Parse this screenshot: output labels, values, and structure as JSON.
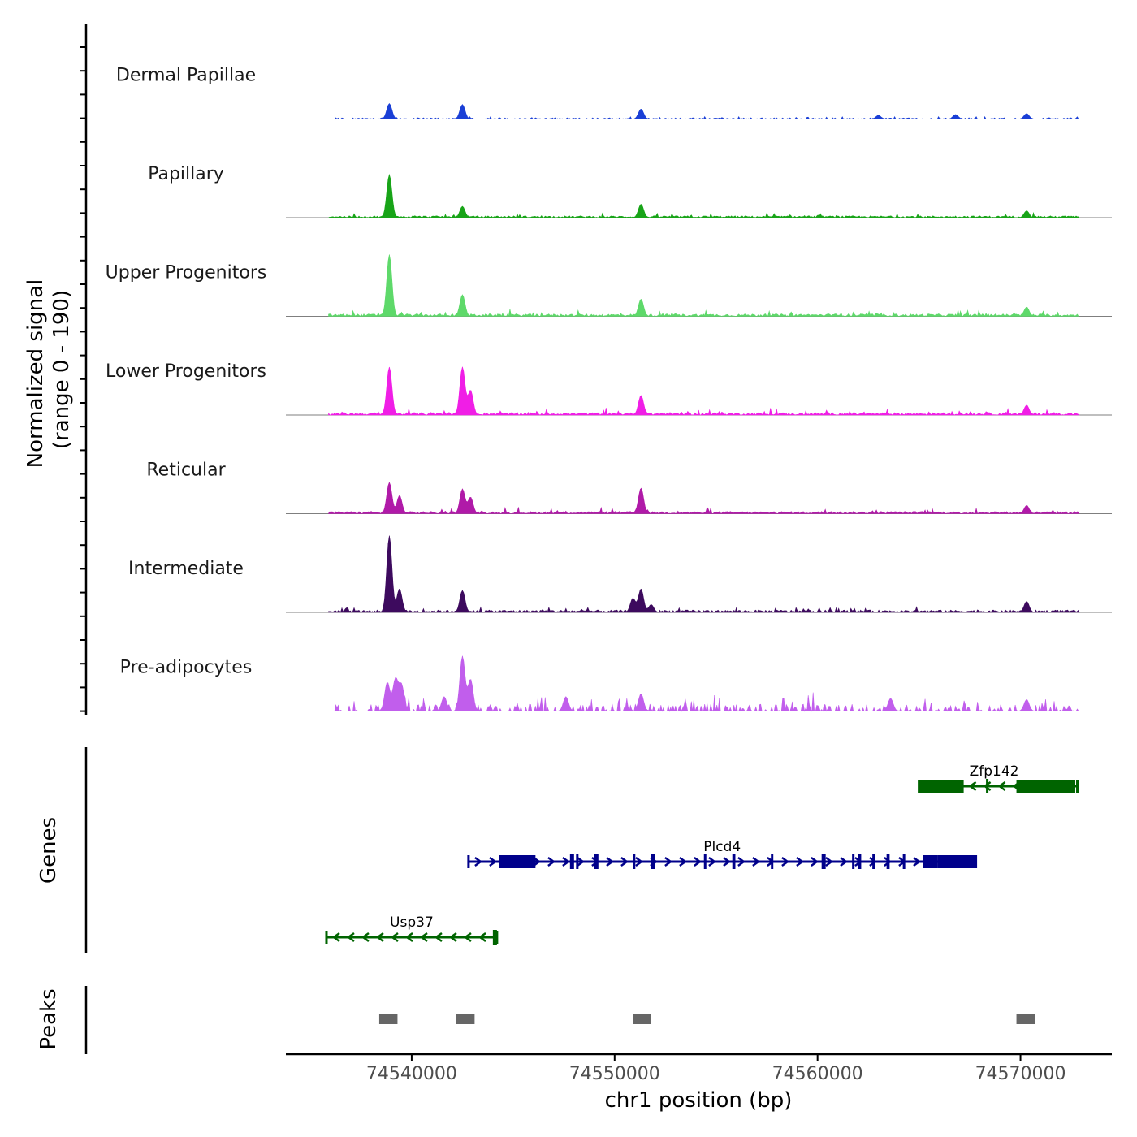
{
  "chart_data": {
    "type": "area",
    "title": "",
    "xlabel": "chr1 position (bp)",
    "ylabel_line1": "Normalized signal",
    "ylabel_line2": "(range 0 - 190)",
    "ylim": [
      0,
      190
    ],
    "xlim": [
      74533800,
      74574500
    ],
    "x_ticks": [
      74540000,
      74550000,
      74560000,
      74570000
    ],
    "x_tick_labels": [
      "74540000",
      "74550000",
      "74560000",
      "74570000"
    ],
    "genes_label": "Genes",
    "peaks_label": "Peaks",
    "signal_tracks": [
      {
        "name": "Dermal Papillae",
        "color": "#1a3fd6",
        "scale": 0.22,
        "peaks": [
          [
            74538900,
            0.85
          ],
          [
            74542500,
            0.8
          ],
          [
            74551300,
            0.55
          ],
          [
            74570300,
            0.3
          ],
          [
            74566800,
            0.25
          ],
          [
            74563000,
            0.2
          ]
        ],
        "noise": 0.07,
        "extent": [
          74536200,
          74572900
        ],
        "gappy": true
      },
      {
        "name": "Papillary",
        "color": "#18a418",
        "scale": 0.55,
        "peaks": [
          [
            74538900,
            0.95
          ],
          [
            74542500,
            0.25
          ],
          [
            74551300,
            0.3
          ],
          [
            74570300,
            0.15
          ]
        ],
        "noise": 0.04,
        "extent": [
          74535900,
          74572900
        ],
        "gappy": false
      },
      {
        "name": "Upper Progenitors",
        "color": "#5ed96a",
        "scale": 0.75,
        "peaks": [
          [
            74538900,
            1.0
          ],
          [
            74542500,
            0.35
          ],
          [
            74551300,
            0.28
          ],
          [
            74570300,
            0.15
          ]
        ],
        "noise": 0.04,
        "extent": [
          74535900,
          74572900
        ],
        "gappy": false
      },
      {
        "name": "Lower Progenitors",
        "color": "#f01ee6",
        "scale": 0.6,
        "peaks": [
          [
            74538900,
            0.97
          ],
          [
            74542500,
            0.97
          ],
          [
            74542900,
            0.5
          ],
          [
            74551300,
            0.4
          ],
          [
            74570300,
            0.2
          ]
        ],
        "noise": 0.05,
        "extent": [
          74535900,
          74572900
        ],
        "gappy": false
      },
      {
        "name": "Reticular",
        "color": "#b01aa8",
        "scale": 0.4,
        "peaks": [
          [
            74538900,
            0.95
          ],
          [
            74539400,
            0.55
          ],
          [
            74542500,
            0.75
          ],
          [
            74542900,
            0.5
          ],
          [
            74551300,
            0.78
          ],
          [
            74570300,
            0.25
          ]
        ],
        "noise": 0.07,
        "extent": [
          74535900,
          74572900
        ],
        "gappy": false
      },
      {
        "name": "Intermediate",
        "color": "#3d0a5e",
        "scale": 0.95,
        "peaks": [
          [
            74538900,
            0.98
          ],
          [
            74539400,
            0.3
          ],
          [
            74542500,
            0.28
          ],
          [
            74550900,
            0.18
          ],
          [
            74551300,
            0.3
          ],
          [
            74551800,
            0.1
          ],
          [
            74570300,
            0.14
          ]
        ],
        "noise": 0.03,
        "extent": [
          74535900,
          74572900
        ],
        "gappy": false
      },
      {
        "name": "Pre-adipocytes",
        "color": "#c15eec",
        "scale": 0.7,
        "peaks": [
          [
            74538800,
            0.5
          ],
          [
            74539200,
            0.55
          ],
          [
            74539500,
            0.45
          ],
          [
            74542500,
            0.95
          ],
          [
            74542900,
            0.55
          ],
          [
            74541600,
            0.25
          ],
          [
            74551300,
            0.3
          ],
          [
            74547600,
            0.25
          ],
          [
            74563600,
            0.22
          ],
          [
            74570300,
            0.2
          ]
        ],
        "noise": 0.12,
        "extent": [
          74535900,
          74572900
        ],
        "gappy": true
      }
    ],
    "genes": [
      {
        "name": "Zfp142",
        "color": "#006400",
        "strand": "-",
        "row": 0,
        "start": 74565000,
        "end": 74572800,
        "exons": [
          [
            74565000,
            74567200
          ],
          [
            74568300,
            74568400
          ],
          [
            74569800,
            74572700
          ]
        ]
      },
      {
        "name": "Plcd4",
        "color": "#00008b",
        "strand": "+",
        "row": 1,
        "start": 74542800,
        "end": 74567800,
        "exons": [
          [
            74544300,
            74546100
          ],
          [
            74547800,
            74548000
          ],
          [
            74548100,
            74548200
          ],
          [
            74549000,
            74549200
          ],
          [
            74550900,
            74551000
          ],
          [
            74551800,
            74552000
          ],
          [
            74554400,
            74554500
          ],
          [
            74555800,
            74555950
          ],
          [
            74557700,
            74557800
          ],
          [
            74560200,
            74560400
          ],
          [
            74561700,
            74561800
          ],
          [
            74562000,
            74562150
          ],
          [
            74562700,
            74562850
          ],
          [
            74563400,
            74563550
          ],
          [
            74564200,
            74564300
          ],
          [
            74565200,
            74565900
          ],
          [
            74565900,
            74567800
          ]
        ]
      },
      {
        "name": "Usp37",
        "color": "#006400",
        "strand": "-",
        "row": 2,
        "start": 74535800,
        "end": 74544200,
        "exons": [
          [
            74544000,
            74544200
          ]
        ]
      }
    ],
    "peak_regions": [
      [
        74538400,
        74539300
      ],
      [
        74542200,
        74543100
      ],
      [
        74550900,
        74551800
      ],
      [
        74569800,
        74570700
      ]
    ]
  }
}
